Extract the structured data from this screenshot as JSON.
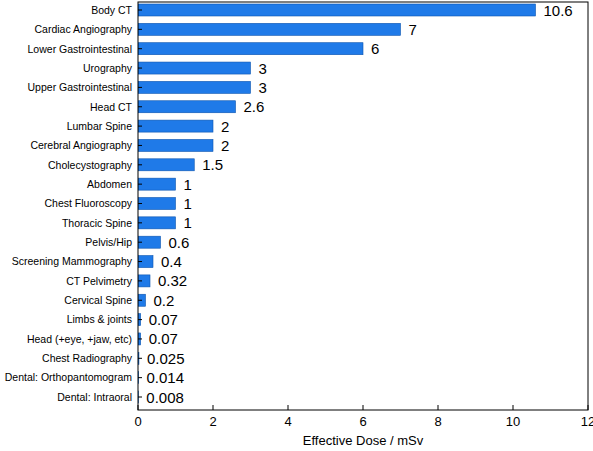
{
  "chart_data": {
    "type": "bar",
    "orientation": "horizontal",
    "categories": [
      "Body CT",
      "Cardiac Angiography",
      "Lower Gastrointestinal",
      "Urography",
      "Upper Gastrointestinal",
      "Head CT",
      "Lumbar Spine",
      "Cerebral Angiography",
      "Cholecystography",
      "Abdomen",
      "Chest Fluoroscopy",
      "Thoracic Spine",
      "Pelvis/Hip",
      "Screening Mammography",
      "CT Pelvimetry",
      "Cervical Spine",
      "Limbs & joints",
      "Head (+eye, +jaw, etc)",
      "Chest Radiography",
      "Dental: Orthopantomogram",
      "Dental: Intraoral"
    ],
    "values": [
      10.6,
      7,
      6,
      3,
      3,
      2.6,
      2,
      2,
      1.5,
      1,
      1,
      1,
      0.6,
      0.4,
      0.32,
      0.2,
      0.07,
      0.07,
      0.025,
      0.014,
      0.008
    ],
    "color": "#1f7ae8",
    "x_label": "Effective Dose / mSv",
    "xlim": [
      0,
      12
    ],
    "xticks": [
      0,
      2,
      4,
      6,
      8,
      10,
      12
    ],
    "grid": false,
    "data_labels": true
  }
}
